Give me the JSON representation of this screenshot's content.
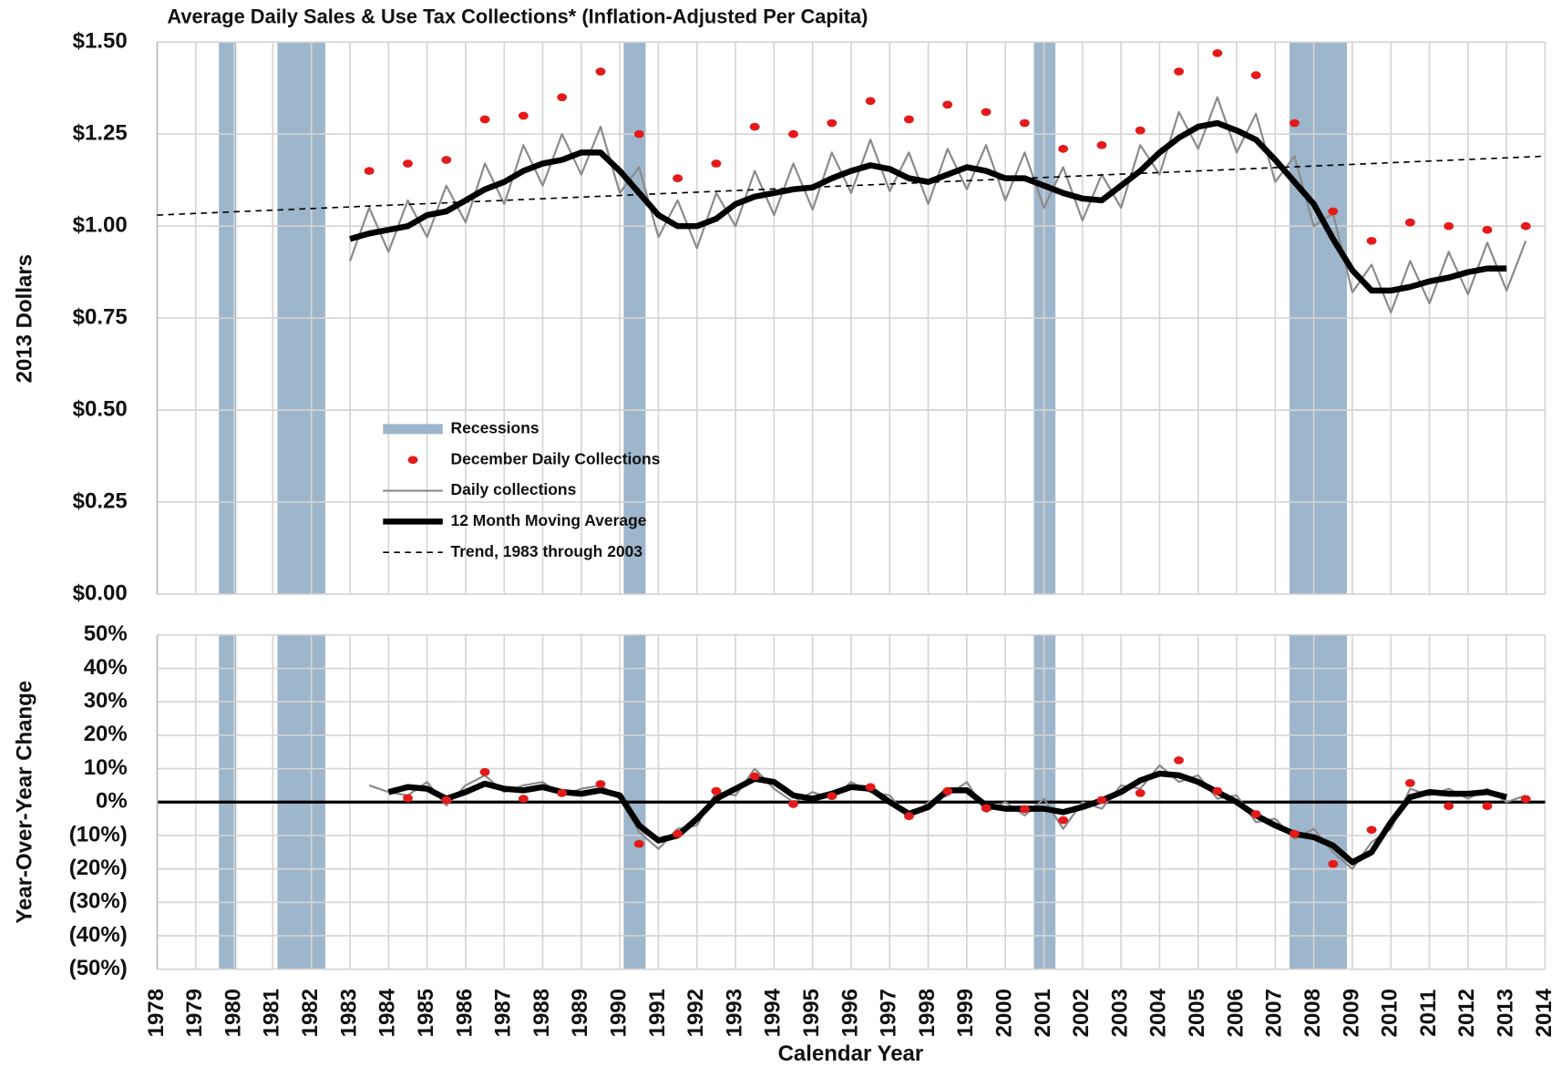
{
  "chart_data": [
    {
      "type": "line",
      "title": "Average Daily Sales & Use Tax Collections* (Inflation-Adjusted Per Capita)",
      "ylabel": "2013 Dollars",
      "xlim": [
        1978,
        2014
      ],
      "xticks": [
        1978,
        1979,
        1980,
        1981,
        1982,
        1983,
        1984,
        1985,
        1986,
        1987,
        1988,
        1989,
        1990,
        1991,
        1992,
        1993,
        1994,
        1995,
        1996,
        1997,
        1998,
        1999,
        2000,
        2001,
        2002,
        2003,
        2004,
        2005,
        2006,
        2007,
        2008,
        2009,
        2010,
        2011,
        2012,
        2013,
        2014
      ],
      "ylim": [
        0,
        1.5
      ],
      "yticks": [
        {
          "value": 0,
          "label": "$0.00"
        },
        {
          "value": 0.25,
          "label": "$0.25"
        },
        {
          "value": 0.5,
          "label": "$0.50"
        },
        {
          "value": 0.75,
          "label": "$0.75"
        },
        {
          "value": 1,
          "label": "$1.00"
        },
        {
          "value": 1.25,
          "label": "$1.25"
        },
        {
          "value": 1.5,
          "label": "$1.50"
        }
      ],
      "grid": true,
      "recession_label": "Recessions",
      "recession_color": "#9db6cc",
      "recessions": [
        [
          1979.6,
          1980.05
        ],
        [
          1981.12,
          1982.36
        ],
        [
          1990.1,
          1990.67
        ],
        [
          2000.74,
          2001.3
        ],
        [
          2007.37,
          2008.86
        ]
      ],
      "series": [
        {
          "name": "December Daily Collections",
          "style": "dots",
          "color": "#e41a1a",
          "x": [
            1983.5,
            1984.5,
            1985.5,
            1986.5,
            1987.5,
            1988.5,
            1989.5,
            1990.5,
            1991.5,
            1992.5,
            1993.5,
            1994.5,
            1995.5,
            1996.5,
            1997.5,
            1998.5,
            1999.5,
            2000.5,
            2001.5,
            2002.5,
            2003.5,
            2004.5,
            2005.5,
            2006.5,
            2007.5,
            2008.5,
            2009.5,
            2010.5,
            2011.5,
            2012.5,
            2013.5
          ],
          "values": [
            1.15,
            1.17,
            1.18,
            1.29,
            1.3,
            1.35,
            1.42,
            1.25,
            1.13,
            1.17,
            1.27,
            1.25,
            1.28,
            1.34,
            1.29,
            1.33,
            1.31,
            1.28,
            1.21,
            1.22,
            1.26,
            1.42,
            1.47,
            1.41,
            1.28,
            1.04,
            0.96,
            1.01,
            1.0,
            0.99,
            1.0
          ]
        },
        {
          "name": "Daily collections",
          "style": "line",
          "color": "#8a8a8a",
          "width": 2,
          "x": [
            1983,
            1983.5,
            1984,
            1984.5,
            1985,
            1985.5,
            1986,
            1986.5,
            1987,
            1987.5,
            1988,
            1988.5,
            1989,
            1989.5,
            1990,
            1990.5,
            1991,
            1991.5,
            1992,
            1992.5,
            1993,
            1993.5,
            1994,
            1994.5,
            1995,
            1995.5,
            1996,
            1996.5,
            1997,
            1997.5,
            1998,
            1998.5,
            1999,
            1999.5,
            2000,
            2000.5,
            2001,
            2001.5,
            2002,
            2002.5,
            2003,
            2003.5,
            2004,
            2004.5,
            2005,
            2005.5,
            2006,
            2006.5,
            2007,
            2007.5,
            2008,
            2008.5,
            2009,
            2009.5,
            2010,
            2010.5,
            2011,
            2011.5,
            2012,
            2012.5,
            2013,
            2013.5
          ],
          "values": [
            0.905,
            1.05,
            0.93,
            1.07,
            0.97,
            1.11,
            1.01,
            1.17,
            1.06,
            1.22,
            1.11,
            1.25,
            1.14,
            1.27,
            1.09,
            1.16,
            0.97,
            1.07,
            0.94,
            1.09,
            1.0,
            1.15,
            1.03,
            1.17,
            1.045,
            1.2,
            1.09,
            1.235,
            1.095,
            1.2,
            1.06,
            1.21,
            1.1,
            1.22,
            1.07,
            1.2,
            1.05,
            1.16,
            1.015,
            1.14,
            1.05,
            1.22,
            1.14,
            1.31,
            1.21,
            1.35,
            1.2,
            1.305,
            1.12,
            1.19,
            1.0,
            1.035,
            0.82,
            0.895,
            0.765,
            0.905,
            0.79,
            0.93,
            0.815,
            0.955,
            0.825,
            0.96
          ]
        },
        {
          "name": "12 Month Moving Average",
          "style": "line",
          "color": "#000000",
          "width": 6,
          "x": [
            1983,
            1983.5,
            1984,
            1984.5,
            1985,
            1985.5,
            1986,
            1986.5,
            1987,
            1987.5,
            1988,
            1988.5,
            1989,
            1989.5,
            1990,
            1990.5,
            1991,
            1991.5,
            1992,
            1992.5,
            1993,
            1993.5,
            1994,
            1994.5,
            1995,
            1995.5,
            1996,
            1996.5,
            1997,
            1997.5,
            1998,
            1998.5,
            1999,
            1999.5,
            2000,
            2000.5,
            2001,
            2001.5,
            2002,
            2002.5,
            2003,
            2003.5,
            2004,
            2004.5,
            2005,
            2005.5,
            2006,
            2006.5,
            2007,
            2007.5,
            2008,
            2008.5,
            2009,
            2009.5,
            2010,
            2010.5,
            2011,
            2011.5,
            2012,
            2012.5,
            2013
          ],
          "values": [
            0.965,
            0.98,
            0.99,
            1.0,
            1.03,
            1.04,
            1.07,
            1.1,
            1.12,
            1.15,
            1.17,
            1.18,
            1.2,
            1.2,
            1.15,
            1.09,
            1.03,
            1.0,
            1.0,
            1.02,
            1.06,
            1.08,
            1.09,
            1.1,
            1.105,
            1.13,
            1.15,
            1.165,
            1.155,
            1.13,
            1.12,
            1.14,
            1.16,
            1.15,
            1.13,
            1.13,
            1.11,
            1.09,
            1.075,
            1.07,
            1.11,
            1.15,
            1.2,
            1.24,
            1.27,
            1.28,
            1.26,
            1.235,
            1.18,
            1.12,
            1.06,
            0.965,
            0.88,
            0.825,
            0.825,
            0.835,
            0.85,
            0.86,
            0.875,
            0.885,
            0.885
          ]
        },
        {
          "name": "Trend, 1983 through 2003",
          "style": "dashed",
          "color": "#000000",
          "width": 1.5,
          "x": [
            1978,
            2014
          ],
          "values": [
            1.03,
            1.19
          ]
        }
      ]
    },
    {
      "type": "line",
      "ylabel": "Year-Over-Year Change",
      "xlabel": "Calendar Year",
      "ylim": [
        -50,
        50
      ],
      "yticks": [
        {
          "value": 50,
          "label": "50%"
        },
        {
          "value": 40,
          "label": "40%"
        },
        {
          "value": 30,
          "label": "30%"
        },
        {
          "value": 20,
          "label": "20%"
        },
        {
          "value": 10,
          "label": "10%"
        },
        {
          "value": 0,
          "label": "0%"
        },
        {
          "value": -10,
          "label": "(10%)"
        },
        {
          "value": -20,
          "label": "(20%)"
        },
        {
          "value": -30,
          "label": "(30%)"
        },
        {
          "value": -40,
          "label": "(40%)"
        },
        {
          "value": -50,
          "label": "(50%)"
        }
      ],
      "negative_label_color": "#e00000",
      "zero_line": true,
      "grid": true,
      "series": [
        {
          "style": "line",
          "color": "#8a8a8a",
          "width": 2,
          "x": [
            1983.5,
            1984,
            1984.5,
            1985,
            1985.5,
            1986,
            1986.5,
            1987,
            1987.5,
            1988,
            1988.5,
            1989,
            1989.5,
            1990,
            1990.5,
            1991,
            1991.5,
            1992,
            1992.5,
            1993,
            1993.5,
            1994,
            1994.5,
            1995,
            1995.5,
            1996,
            1996.5,
            1997,
            1997.5,
            1998,
            1998.5,
            1999,
            1999.5,
            2000,
            2000.5,
            2001,
            2001.5,
            2002,
            2002.5,
            2003,
            2003.5,
            2004,
            2004.5,
            2005,
            2005.5,
            2006,
            2006.5,
            2007,
            2007.5,
            2008,
            2008.5,
            2009,
            2009.5,
            2010,
            2010.5,
            2011,
            2011.5,
            2012,
            2012.5,
            2013,
            2013.5
          ],
          "values": [
            5,
            3,
            2,
            6,
            -1,
            5,
            8,
            3,
            5,
            6,
            2,
            4,
            5,
            1,
            -9,
            -14,
            -8,
            -7,
            3,
            2,
            10,
            4,
            0,
            3,
            1,
            6,
            3,
            2,
            -5,
            0,
            2,
            6,
            -3,
            0,
            -4,
            1,
            -8,
            0,
            -2,
            5,
            4,
            11,
            6,
            8,
            1,
            2,
            -6,
            -5,
            -11,
            -8,
            -15,
            -20,
            -12,
            -8,
            4,
            2,
            4,
            1,
            4,
            0,
            2
          ]
        },
        {
          "style": "line",
          "color": "#000000",
          "width": 6,
          "x": [
            1984,
            1984.5,
            1985,
            1985.5,
            1986,
            1986.5,
            1987,
            1987.5,
            1988,
            1988.5,
            1989,
            1989.5,
            1990,
            1990.5,
            1991,
            1991.5,
            1992,
            1992.5,
            1993,
            1993.5,
            1994,
            1994.5,
            1995,
            1995.5,
            1996,
            1996.5,
            1997,
            1997.5,
            1998,
            1998.5,
            1999,
            1999.5,
            2000,
            2000.5,
            2001,
            2001.5,
            2002,
            2002.5,
            2003,
            2003.5,
            2004,
            2004.5,
            2005,
            2005.5,
            2006,
            2006.5,
            2007,
            2007.5,
            2008,
            2008.5,
            2009,
            2009.5,
            2010,
            2010.5,
            2011,
            2011.5,
            2012,
            2012.5,
            2013
          ],
          "values": [
            3,
            4.5,
            4,
            1,
            3,
            5.5,
            4,
            3.5,
            4.5,
            3,
            2.5,
            3.5,
            2,
            -7,
            -11.5,
            -10,
            -5,
            1,
            4,
            7,
            6,
            2,
            1,
            2.5,
            4.5,
            4,
            0,
            -3.5,
            -1.5,
            3.5,
            3.5,
            -1,
            -2,
            -2,
            -2,
            -3,
            -1.5,
            0.5,
            3,
            6.5,
            8.5,
            8,
            6,
            3,
            0,
            -4,
            -7,
            -9.5,
            -10.5,
            -13,
            -18,
            -15,
            -6,
            1.5,
            3,
            2.5,
            2.5,
            3,
            1.5
          ]
        },
        {
          "style": "dots",
          "color": "#e41a1a",
          "x": [
            1984.5,
            1985.5,
            1986.5,
            1987.5,
            1988.5,
            1989.5,
            1990.5,
            1991.5,
            1992.5,
            1993.5,
            1994.5,
            1995.5,
            1996.5,
            1997.5,
            1998.5,
            1999.5,
            2000.5,
            2001.5,
            2002.5,
            2003.5,
            2004.5,
            2005.5,
            2006.5,
            2007.5,
            2008.5,
            2009.5,
            2010.5,
            2011.5,
            2012.5,
            2013.5
          ],
          "values": [
            1.2,
            0.6,
            9,
            1,
            2.7,
            5.4,
            -12.5,
            -9.5,
            3.3,
            7.7,
            -0.6,
            1.8,
            4.5,
            -4.2,
            3.3,
            -1.8,
            -2.1,
            -5.4,
            0.6,
            2.7,
            12.5,
            3.3,
            -3.6,
            -9.5,
            -18.5,
            -8.3,
            5.7,
            -1.2,
            -1.2,
            0.9
          ]
        }
      ]
    }
  ]
}
